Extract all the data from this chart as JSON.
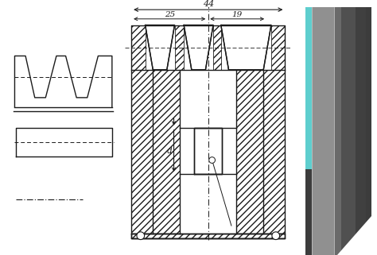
{
  "bg_color": "#ffffff",
  "line_color": "#1a1a1a",
  "dim_44": "44",
  "dim_25": "25",
  "dim_19": "19",
  "dim_d": "d"
}
